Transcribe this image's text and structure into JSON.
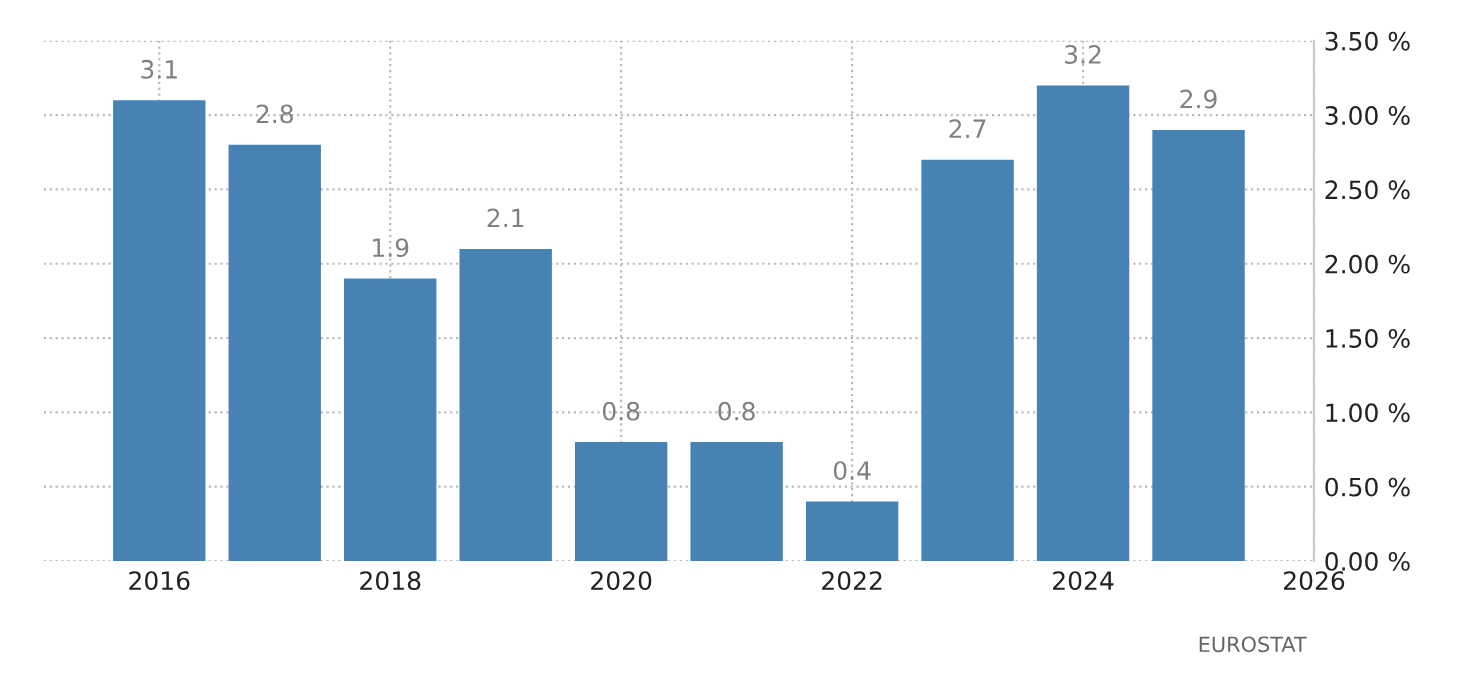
{
  "chart_data": {
    "type": "bar",
    "x": [
      2016,
      2017,
      2018,
      2019,
      2020,
      2021,
      2022,
      2023,
      2024,
      2025
    ],
    "values": [
      3.1,
      2.8,
      1.9,
      2.1,
      0.8,
      0.8,
      0.4,
      2.7,
      3.2,
      2.9
    ],
    "color": "#4682b4",
    "data_labels": true,
    "xlim": [
      2015,
      2026
    ],
    "xticks": [
      2016,
      2018,
      2020,
      2022,
      2024,
      2026
    ],
    "ylim": [
      0,
      3.5
    ],
    "yticks": [
      {
        "value": 0,
        "label": "0.00 %"
      },
      {
        "value": 0.5,
        "label": "0.50 %"
      },
      {
        "value": 1,
        "label": "1.00 %"
      },
      {
        "value": 1.5,
        "label": "1.50 %"
      },
      {
        "value": 2,
        "label": "2.00 %"
      },
      {
        "value": 2.5,
        "label": "2.50 %"
      },
      {
        "value": 3,
        "label": "3.00 %"
      },
      {
        "value": 3.5,
        "label": "3.50 %"
      }
    ],
    "grid": true,
    "annotations": [
      "EUROSTAT"
    ]
  }
}
